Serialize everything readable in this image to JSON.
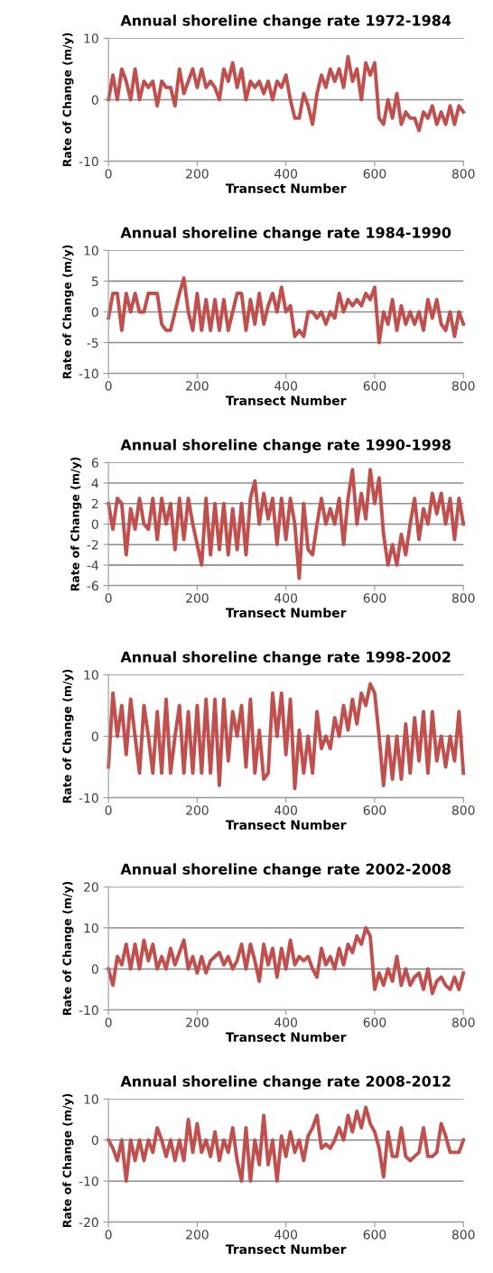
{
  "chart_data": [
    {
      "type": "line",
      "title": "Annual shoreline change rate 1972-1984",
      "xlabel": "Transect Number",
      "ylabel": "Rate of Change (m/y)",
      "xlim": [
        0,
        800
      ],
      "xticks": [
        0,
        200,
        400,
        600,
        800
      ],
      "ylim": [
        -10,
        10
      ],
      "yticks": [
        -10,
        0,
        10
      ],
      "grid": "y",
      "x": [
        0,
        10,
        20,
        30,
        40,
        50,
        60,
        70,
        80,
        90,
        100,
        110,
        120,
        130,
        140,
        150,
        160,
        170,
        180,
        190,
        200,
        210,
        220,
        230,
        240,
        250,
        260,
        270,
        280,
        290,
        300,
        310,
        320,
        330,
        340,
        350,
        360,
        370,
        380,
        390,
        400,
        410,
        420,
        430,
        440,
        450,
        460,
        470,
        480,
        490,
        500,
        510,
        520,
        530,
        540,
        550,
        560,
        570,
        580,
        590,
        600,
        610,
        620,
        630,
        640,
        650,
        660,
        670,
        680,
        690,
        700,
        710,
        720,
        730,
        740,
        750,
        760,
        770,
        780,
        790,
        800
      ],
      "series": [
        {
          "color": "#c0504d",
          "values": [
            0,
            4,
            0,
            5,
            3,
            0,
            5,
            0,
            3,
            2,
            3,
            -1,
            3,
            2,
            2,
            -1,
            5,
            1,
            3,
            5,
            2,
            5,
            2,
            3,
            2,
            0,
            5,
            3,
            6,
            2,
            5,
            0,
            3,
            2,
            3,
            1,
            3,
            0,
            3,
            2,
            4,
            0,
            -3,
            -3,
            1,
            -1,
            -4,
            1,
            4,
            2,
            5,
            3,
            5,
            2,
            7,
            3,
            5,
            0,
            6,
            4,
            6,
            -3,
            -4,
            0,
            -3,
            1,
            -4,
            -2,
            -3,
            -3,
            -5,
            -2,
            -3,
            -1,
            -4,
            -2,
            -4,
            -1,
            -4,
            -1,
            -2
          ]
        }
      ]
    },
    {
      "type": "line",
      "title": "Annual shoreline change rate 1984-1990",
      "xlabel": "Transect Number",
      "ylabel": "Rate of Change (m/y)",
      "xlim": [
        0,
        800
      ],
      "xticks": [
        0,
        200,
        400,
        600,
        800
      ],
      "ylim": [
        -10,
        10
      ],
      "yticks": [
        -10,
        -5,
        0,
        5,
        10
      ],
      "grid": "y",
      "x": [
        0,
        10,
        20,
        30,
        40,
        50,
        60,
        70,
        80,
        90,
        100,
        110,
        120,
        130,
        140,
        150,
        160,
        170,
        180,
        190,
        200,
        210,
        220,
        230,
        240,
        250,
        260,
        270,
        280,
        290,
        300,
        310,
        320,
        330,
        340,
        350,
        360,
        370,
        380,
        390,
        400,
        410,
        420,
        430,
        440,
        450,
        460,
        470,
        480,
        490,
        500,
        510,
        520,
        530,
        540,
        550,
        560,
        570,
        580,
        590,
        600,
        610,
        620,
        630,
        640,
        650,
        660,
        670,
        680,
        690,
        700,
        710,
        720,
        730,
        740,
        750,
        760,
        770,
        780,
        790,
        800
      ],
      "series": [
        {
          "color": "#c0504d",
          "values": [
            -1,
            3,
            3,
            -3,
            3,
            0,
            3,
            0,
            0,
            3,
            3,
            3,
            -2,
            -3,
            -3,
            0,
            3,
            5.5,
            0,
            -3,
            3,
            -3,
            2,
            -3,
            2,
            -3,
            2,
            -3,
            0,
            3,
            3,
            -3,
            2,
            -2,
            3,
            -2,
            1,
            3,
            0,
            4,
            0,
            1,
            -4,
            -3,
            -4,
            0,
            0,
            -1,
            0,
            -2,
            0,
            -1,
            3,
            0,
            2,
            1,
            2,
            1,
            3,
            2,
            4,
            -5,
            0,
            -2,
            2,
            -3,
            1,
            -2,
            0,
            -2,
            0,
            -3,
            2,
            -1,
            2,
            -2,
            -3,
            0,
            -4,
            0,
            -2
          ]
        }
      ]
    },
    {
      "type": "line",
      "title": "Annual shoreline change rate 1990-1998",
      "xlabel": "Transect Number",
      "ylabel": "Rate of Change (m/y)",
      "xlim": [
        0,
        800
      ],
      "xticks": [
        0,
        200,
        400,
        600,
        800
      ],
      "ylim": [
        -6,
        6
      ],
      "yticks": [
        -6,
        -4,
        -2,
        0,
        2,
        4,
        6
      ],
      "grid": "y",
      "x": [
        0,
        10,
        20,
        30,
        40,
        50,
        60,
        70,
        80,
        90,
        100,
        110,
        120,
        130,
        140,
        150,
        160,
        170,
        180,
        190,
        200,
        210,
        220,
        230,
        240,
        250,
        260,
        270,
        280,
        290,
        300,
        310,
        320,
        330,
        340,
        350,
        360,
        370,
        380,
        390,
        400,
        410,
        420,
        430,
        440,
        450,
        460,
        470,
        480,
        490,
        500,
        510,
        520,
        530,
        540,
        550,
        560,
        570,
        580,
        590,
        600,
        610,
        620,
        630,
        640,
        650,
        660,
        670,
        680,
        690,
        700,
        710,
        720,
        730,
        740,
        750,
        760,
        770,
        780,
        790,
        800
      ],
      "series": [
        {
          "color": "#c0504d",
          "values": [
            2,
            -0.5,
            2.5,
            2,
            -3,
            1.5,
            -0.5,
            2.5,
            0,
            -0.5,
            2.5,
            -1.5,
            2.5,
            0,
            2,
            -2.5,
            2.5,
            -1.5,
            2.5,
            0,
            -2,
            -4,
            2.5,
            -3,
            2,
            -2.5,
            2,
            -3,
            1.5,
            -2.5,
            2,
            -3,
            2.5,
            4.2,
            0,
            3,
            0.5,
            2.5,
            -2,
            2.5,
            -1.5,
            2.5,
            0,
            -5.3,
            2,
            -2.5,
            -3,
            0,
            2.5,
            0,
            1.5,
            0,
            2.5,
            -2,
            2.5,
            5.3,
            0,
            3,
            0.5,
            5.3,
            2,
            4.5,
            -1,
            -4,
            -2,
            -4,
            -1,
            -3,
            0,
            2.5,
            -1.5,
            1.5,
            0,
            3,
            1,
            3,
            0,
            2.5,
            -1.5,
            2.5,
            0
          ]
        }
      ]
    },
    {
      "type": "line",
      "title": "Annual shoreline change rate 1998-2002",
      "xlabel": "Transect Number",
      "ylabel": "Rate of Change (m/y)",
      "xlim": [
        0,
        800
      ],
      "xticks": [
        0,
        200,
        400,
        600,
        800
      ],
      "ylim": [
        -10,
        10
      ],
      "yticks": [
        -10,
        0,
        10
      ],
      "grid": "y",
      "x": [
        0,
        10,
        20,
        30,
        40,
        50,
        60,
        70,
        80,
        90,
        100,
        110,
        120,
        130,
        140,
        150,
        160,
        170,
        180,
        190,
        200,
        210,
        220,
        230,
        240,
        250,
        260,
        270,
        280,
        290,
        300,
        310,
        320,
        330,
        340,
        350,
        360,
        370,
        380,
        390,
        400,
        410,
        420,
        430,
        440,
        450,
        460,
        470,
        480,
        490,
        500,
        510,
        520,
        530,
        540,
        550,
        560,
        570,
        580,
        590,
        600,
        610,
        620,
        630,
        640,
        650,
        660,
        670,
        680,
        690,
        700,
        710,
        720,
        730,
        740,
        750,
        760,
        770,
        780,
        790,
        800
      ],
      "series": [
        {
          "color": "#c0504d",
          "values": [
            -5,
            7,
            0,
            5,
            -3,
            6,
            0,
            -6,
            5,
            0,
            -6,
            4,
            -6,
            6,
            -6,
            0,
            5,
            -6,
            4,
            -6,
            5,
            -6,
            6,
            -6,
            6,
            -8,
            6,
            -4,
            4,
            0,
            5,
            -5,
            6,
            -6,
            1,
            -7,
            -6,
            7,
            0,
            7,
            -3,
            6,
            -8.5,
            1,
            -6,
            0,
            -6,
            4,
            -2,
            0,
            -2,
            3,
            0,
            5,
            1,
            6,
            2,
            7,
            5,
            8.5,
            7,
            0,
            -8,
            0,
            -7,
            0,
            -7,
            2,
            -6,
            3,
            -4,
            4,
            -6,
            4,
            -4,
            0,
            -5,
            0,
            -4,
            4,
            -6
          ]
        }
      ]
    },
    {
      "type": "line",
      "title": "Annual shoreline change rate 2002-2008",
      "xlabel": "Transect Number",
      "ylabel": "Rate of Change (m/y)",
      "xlim": [
        0,
        800
      ],
      "xticks": [
        0,
        200,
        400,
        600,
        800
      ],
      "ylim": [
        -10,
        20
      ],
      "yticks": [
        -10,
        0,
        10,
        20
      ],
      "grid": "y",
      "x": [
        0,
        10,
        20,
        30,
        40,
        50,
        60,
        70,
        80,
        90,
        100,
        110,
        120,
        130,
        140,
        150,
        160,
        170,
        180,
        190,
        200,
        210,
        220,
        230,
        240,
        250,
        260,
        270,
        280,
        290,
        300,
        310,
        320,
        330,
        340,
        350,
        360,
        370,
        380,
        390,
        400,
        410,
        420,
        430,
        440,
        450,
        460,
        470,
        480,
        490,
        500,
        510,
        520,
        530,
        540,
        550,
        560,
        570,
        580,
        590,
        600,
        610,
        620,
        630,
        640,
        650,
        660,
        670,
        680,
        690,
        700,
        710,
        720,
        730,
        740,
        750,
        760,
        770,
        780,
        790,
        800
      ],
      "series": [
        {
          "color": "#c0504d",
          "values": [
            0,
            -4,
            3,
            1,
            6,
            0,
            6,
            0,
            7,
            2,
            6,
            0,
            3,
            0,
            5,
            1,
            4,
            7,
            0,
            3,
            -1,
            3,
            -1,
            2,
            3,
            4,
            1,
            3,
            0,
            2,
            6,
            0,
            6,
            2,
            -3,
            6,
            1,
            5,
            -2,
            5,
            0,
            7,
            1,
            3,
            2,
            3,
            0,
            -2,
            5,
            1,
            3,
            0,
            5,
            1,
            6,
            4,
            8,
            6,
            10,
            8,
            -5,
            -1,
            -4,
            0,
            -3,
            3,
            -4,
            0,
            -4,
            -2,
            -1,
            -5,
            0,
            -6,
            -3,
            -2,
            -4,
            -5,
            -2,
            -5,
            -1
          ]
        }
      ]
    },
    {
      "type": "line",
      "title": "Annual shoreline change rate 2008-2012",
      "xlabel": "Transect Number",
      "ylabel": "Rate of Change (m/y)",
      "xlim": [
        0,
        800
      ],
      "xticks": [
        0,
        200,
        400,
        600,
        800
      ],
      "ylim": [
        -20,
        10
      ],
      "yticks": [
        -20,
        -10,
        0,
        10
      ],
      "grid": "y",
      "x": [
        0,
        10,
        20,
        30,
        40,
        50,
        60,
        70,
        80,
        90,
        100,
        110,
        120,
        130,
        140,
        150,
        160,
        170,
        180,
        190,
        200,
        210,
        220,
        230,
        240,
        250,
        260,
        270,
        280,
        290,
        300,
        310,
        320,
        330,
        340,
        350,
        360,
        370,
        380,
        390,
        400,
        410,
        420,
        430,
        440,
        450,
        460,
        470,
        480,
        490,
        500,
        510,
        520,
        530,
        540,
        550,
        560,
        570,
        580,
        590,
        600,
        610,
        620,
        630,
        640,
        650,
        660,
        670,
        680,
        690,
        700,
        710,
        720,
        730,
        740,
        750,
        760,
        770,
        780,
        790,
        800
      ],
      "series": [
        {
          "color": "#c0504d",
          "values": [
            0,
            -2,
            -5,
            0,
            -10,
            0,
            -5,
            0,
            -5,
            0,
            -3,
            3,
            0,
            -4,
            0,
            -5,
            0,
            -5,
            5,
            -3,
            4,
            -3,
            0,
            -4,
            2,
            -5,
            0,
            -3,
            3,
            -5,
            -10,
            3,
            -10,
            0,
            -6,
            6,
            -6,
            0,
            -10,
            1,
            -4,
            2,
            -3,
            0,
            -5,
            1,
            3,
            6,
            -2,
            -1,
            -2,
            0,
            3,
            0,
            6,
            2,
            7,
            3,
            8,
            4,
            2,
            -2,
            -9,
            2,
            -4,
            -4,
            3,
            -4,
            -5,
            -4,
            -3,
            3,
            -4,
            -4,
            -3,
            4,
            1,
            -3,
            -3,
            -3,
            0
          ]
        }
      ]
    }
  ]
}
